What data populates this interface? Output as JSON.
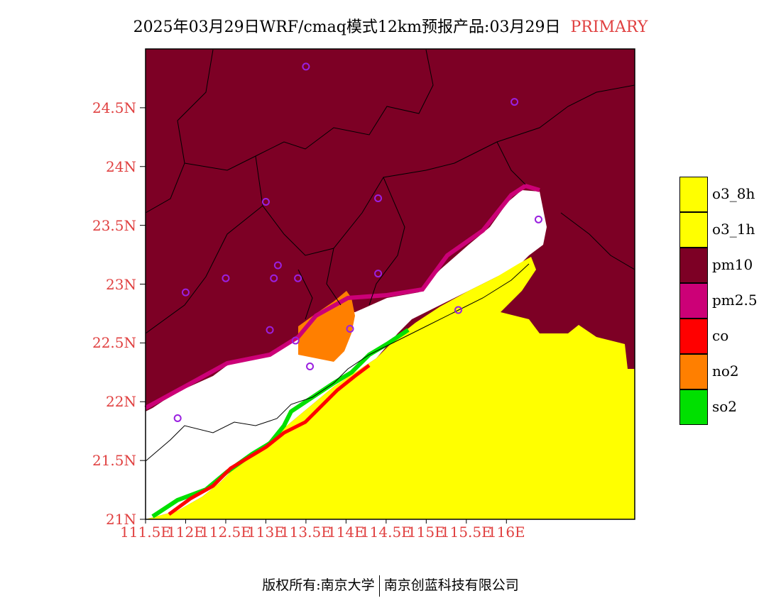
{
  "title": {
    "text": "2025年03月29日WRF/cmaq模式12km预报产品:03月29日",
    "product": "PRIMARY"
  },
  "map": {
    "lon_ticks": [
      "111.5E",
      "112E",
      "112.5E",
      "113E",
      "113.5E",
      "114E",
      "114.5E",
      "115E",
      "115.5E",
      "116E"
    ],
    "lat_ticks": [
      "21N",
      "21.5N",
      "22N",
      "22.5N",
      "23N",
      "23.5N",
      "24N",
      "24.5N"
    ],
    "lon_range": [
      111.5,
      117.6
    ],
    "lat_range": [
      21.0,
      25.0
    ],
    "background_pollutant": "pm10",
    "ocean_pollutant": "o3_8h",
    "station_markers": [
      {
        "lon": 113.5,
        "lat": 24.85
      },
      {
        "lon": 116.1,
        "lat": 24.55
      },
      {
        "lon": 113.0,
        "lat": 23.7
      },
      {
        "lon": 114.4,
        "lat": 23.73
      },
      {
        "lon": 116.4,
        "lat": 23.55
      },
      {
        "lon": 112.0,
        "lat": 22.93
      },
      {
        "lon": 112.5,
        "lat": 23.05
      },
      {
        "lon": 113.15,
        "lat": 23.16
      },
      {
        "lon": 113.1,
        "lat": 23.05
      },
      {
        "lon": 113.4,
        "lat": 23.05
      },
      {
        "lon": 114.4,
        "lat": 23.09
      },
      {
        "lon": 115.4,
        "lat": 22.78
      },
      {
        "lon": 113.05,
        "lat": 22.61
      },
      {
        "lon": 113.37,
        "lat": 22.52
      },
      {
        "lon": 114.05,
        "lat": 22.62
      },
      {
        "lon": 113.55,
        "lat": 22.3
      },
      {
        "lon": 111.9,
        "lat": 21.86
      }
    ]
  },
  "legend": {
    "items": [
      {
        "label": "o3_8h",
        "color": "#ffff00"
      },
      {
        "label": "o3_1h",
        "color": "#ffff00"
      },
      {
        "label": "pm10",
        "color": "#7d0025"
      },
      {
        "label": "pm2.5",
        "color": "#cc0077"
      },
      {
        "label": "co",
        "color": "#ff0000"
      },
      {
        "label": "no2",
        "color": "#ff7f00"
      },
      {
        "label": "so2",
        "color": "#00e000"
      }
    ]
  },
  "footer": {
    "left": "版权所有:南京大学",
    "right": "南京创蓝科技有限公司"
  }
}
